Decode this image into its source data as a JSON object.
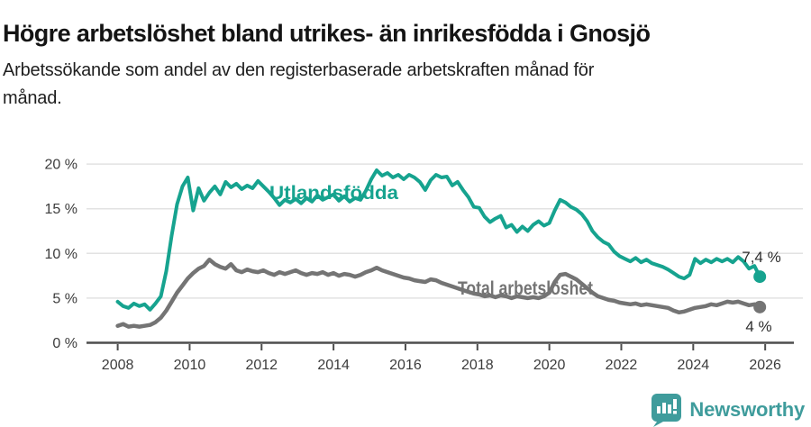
{
  "header": {
    "title": "Högre arbetslöshet bland utrikes- än inrikesfödda i Gnosjö",
    "subtitle_line1": "Arbetssökande som andel av den registerbaserade arbetskraften månad för",
    "subtitle_line2": "månad."
  },
  "footer": {
    "brand": "Newsworthy",
    "logo_icon": "newsworthy-speech-bubble-bar-chart-icon",
    "brand_color": "#3F9C9C"
  },
  "chart_data": {
    "type": "line",
    "title": "Högre arbetslöshet bland utrikes- än inrikesfödda i Gnosjö",
    "subtitle": "Arbetssökande som andel av den registerbaserade arbetskraften månad för månad.",
    "grid": "horizontal",
    "x_axis": {
      "ticks": [
        2008,
        2010,
        2012,
        2014,
        2016,
        2018,
        2020,
        2022,
        2024,
        2026
      ],
      "range": [
        2007.25,
        2026.55
      ]
    },
    "y_axis": {
      "tick_labels": [
        "0 %",
        "5 %",
        "10 %",
        "15 %",
        "20 %"
      ],
      "tick_values": [
        0,
        5,
        10,
        15,
        20
      ],
      "range": [
        0,
        20
      ]
    },
    "series": [
      {
        "name": "Utlandsfödda",
        "color": "#16A38F",
        "end_label": "7,4 %",
        "last_value": 7.4,
        "x_start": 2008.0,
        "x_step": 0.15,
        "values": [
          4.6,
          4.1,
          3.9,
          4.4,
          4.1,
          4.3,
          3.7,
          4.4,
          5.2,
          8.0,
          12.0,
          15.5,
          17.5,
          18.5,
          14.8,
          17.3,
          15.9,
          16.8,
          17.5,
          16.6,
          18.0,
          17.4,
          17.8,
          17.2,
          17.6,
          17.3,
          18.1,
          17.5,
          16.9,
          16.2,
          15.4,
          16.0,
          15.7,
          16.1,
          15.6,
          16.2,
          15.8,
          16.5,
          16.0,
          16.3,
          16.6,
          15.9,
          16.4,
          15.8,
          16.2,
          16.0,
          17.0,
          18.3,
          19.3,
          18.7,
          19.0,
          18.5,
          18.8,
          18.3,
          18.8,
          18.5,
          18.0,
          17.1,
          18.2,
          18.8,
          18.5,
          18.6,
          17.6,
          18.0,
          17.1,
          16.3,
          15.2,
          15.1,
          14.1,
          13.5,
          13.9,
          14.2,
          12.9,
          13.2,
          12.4,
          13.0,
          12.5,
          13.2,
          13.6,
          13.1,
          13.4,
          14.8,
          16.0,
          15.7,
          15.2,
          14.9,
          14.4,
          13.6,
          12.5,
          11.8,
          11.3,
          11.0,
          10.2,
          9.7,
          9.4,
          9.1,
          9.5,
          9.0,
          9.3,
          8.9,
          8.7,
          8.5,
          8.2,
          7.8,
          7.4,
          7.2,
          7.6,
          9.4,
          8.9,
          9.3,
          9.0,
          9.4,
          9.1,
          9.4,
          9.0,
          9.6,
          9.1,
          8.3,
          8.6,
          7.4
        ]
      },
      {
        "name": "Total arbetslöshet",
        "color": "#747474",
        "end_label": "4 %",
        "last_value": 4.0,
        "x_start": 2008.0,
        "x_step": 0.15,
        "values": [
          1.9,
          2.1,
          1.8,
          1.9,
          1.8,
          1.9,
          2.0,
          2.3,
          2.8,
          3.6,
          4.6,
          5.6,
          6.4,
          7.2,
          7.8,
          8.3,
          8.6,
          9.3,
          8.8,
          8.5,
          8.3,
          8.8,
          8.1,
          7.9,
          8.2,
          8.0,
          7.9,
          8.1,
          7.8,
          7.6,
          7.9,
          7.7,
          7.9,
          8.1,
          7.8,
          7.6,
          7.8,
          7.7,
          7.9,
          7.6,
          7.8,
          7.5,
          7.7,
          7.6,
          7.4,
          7.6,
          7.9,
          8.1,
          8.4,
          8.1,
          7.9,
          7.7,
          7.5,
          7.3,
          7.2,
          7.0,
          6.9,
          6.8,
          7.1,
          7.0,
          6.7,
          6.5,
          6.3,
          6.1,
          5.9,
          5.7,
          5.5,
          5.4,
          5.2,
          5.3,
          5.1,
          5.3,
          5.2,
          5.0,
          5.2,
          5.1,
          5.0,
          5.1,
          5.0,
          5.2,
          5.6,
          6.8,
          7.6,
          7.7,
          7.4,
          7.1,
          6.6,
          6.1,
          5.6,
          5.2,
          5.0,
          4.8,
          4.7,
          4.5,
          4.4,
          4.3,
          4.4,
          4.2,
          4.3,
          4.2,
          4.1,
          4.0,
          3.9,
          3.6,
          3.4,
          3.5,
          3.7,
          3.9,
          4.0,
          4.1,
          4.3,
          4.2,
          4.4,
          4.6,
          4.5,
          4.6,
          4.4,
          4.2,
          4.3,
          4.0
        ]
      }
    ]
  }
}
